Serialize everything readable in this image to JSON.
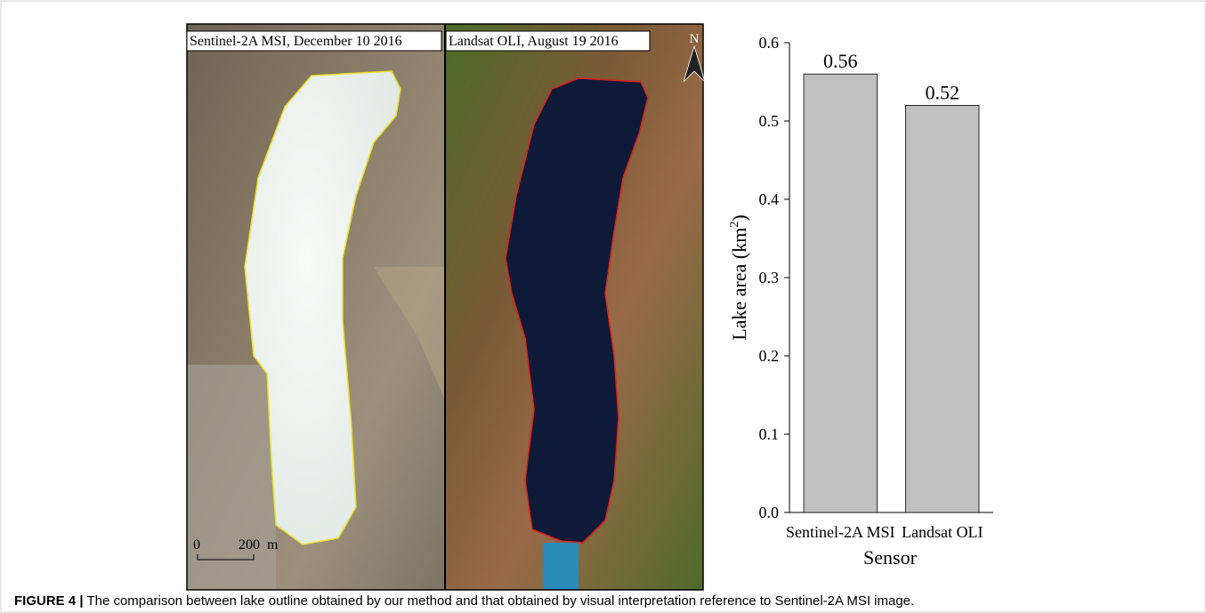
{
  "figure": {
    "panels": [
      {
        "label": "Sentinel-2A MSI, December 10 2016"
      },
      {
        "label": "Landsat OLI, August 19 2016"
      }
    ],
    "north": "N",
    "scale_bar": {
      "start": "0",
      "end": "200",
      "unit": "m"
    },
    "caption": {
      "number": "FIGURE 4 |",
      "text": "The comparison between lake outline obtained by our method and that obtained by visual interpretation reference to Sentinel-2A MSI image."
    }
  },
  "chart_data": {
    "type": "bar",
    "categories": [
      "Sentinel-2A MSI",
      "Landsat OLI"
    ],
    "values": [
      0.56,
      0.52
    ],
    "color": "#c0c0c0",
    "x_label": "Sensor",
    "y_label": [
      "Lake area (km",
      "2",
      ")"
    ],
    "ylim": [
      0,
      0.6
    ],
    "yticks": [
      {
        "value": 0,
        "label": "0.0"
      },
      0.1,
      0.2,
      0.3,
      0.4,
      0.5,
      0.6
    ]
  }
}
